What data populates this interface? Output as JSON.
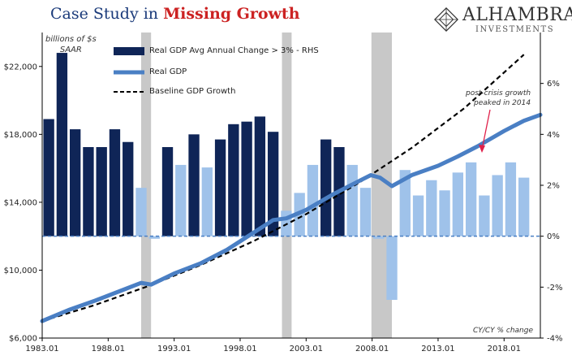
{
  "title": {
    "part1": "Case Study in ",
    "part2": "Missing Growth"
  },
  "logo": {
    "name": "ALHAMBRA",
    "sub": "INVESTMENTS"
  },
  "left_axis_label": [
    "billions of $s",
    "SAAR"
  ],
  "x_note": "CY/CY % change",
  "annotation": [
    "post-crisis growth",
    "peaked in 2014"
  ],
  "legend": [
    {
      "label": "Real GDP Avg Annual Change > 3% - RHS",
      "style": "bar-dark"
    },
    {
      "label": "Real GDP",
      "style": "line-blue"
    },
    {
      "label": "Baseline GDP Growth",
      "style": "dashed-black"
    }
  ],
  "colors": {
    "dark_bar": "#0f2557",
    "light_bar": "#9fc2ea",
    "gdp_line": "#4a7fc4",
    "baseline": "#000000",
    "recession": "#c8c8c8",
    "zero_line": "#4a7fc4"
  },
  "chart_data": {
    "type": "bar+line",
    "x_range": [
      1983.0,
      2020.75
    ],
    "x_tick_labels": [
      "1983.01",
      "1988.01",
      "1993.01",
      "1998.01",
      "2003.01",
      "2008.01",
      "2013.01",
      "2018.01"
    ],
    "x_tick_values": [
      1983.0,
      1988.0,
      1993.0,
      1998.0,
      2003.0,
      2008.0,
      2013.0,
      2018.0
    ],
    "left_axis": {
      "ylim": [
        6000,
        24000
      ],
      "tick_values": [
        6000,
        10000,
        14000,
        18000,
        22000
      ],
      "tick_labels": [
        "$6,000",
        "$10,000",
        "$14,000",
        "$18,000",
        "$22,000"
      ]
    },
    "right_axis": {
      "ylim": [
        -4,
        8
      ],
      "tick_values": [
        -4,
        -2,
        0,
        2,
        4,
        6
      ],
      "tick_labels": [
        "-4%",
        "-2%",
        "0%",
        "2%",
        "4%",
        "6%"
      ]
    },
    "recessions": [
      [
        1990.5,
        1991.25
      ],
      [
        2001.17,
        2001.9
      ],
      [
        2007.95,
        2009.5
      ]
    ],
    "bars": {
      "x": [
        1983,
        1984,
        1985,
        1986,
        1987,
        1988,
        1989,
        1990,
        1991,
        1992,
        1993,
        1994,
        1995,
        1996,
        1997,
        1998,
        1999,
        2000,
        2001,
        2002,
        2003,
        2004,
        2005,
        2006,
        2007,
        2008,
        2009,
        2010,
        2011,
        2012,
        2013,
        2014,
        2015,
        2016,
        2017,
        2018,
        2019
      ],
      "values": [
        4.6,
        7.2,
        4.2,
        3.5,
        3.5,
        4.2,
        3.7,
        1.9,
        -0.1,
        3.5,
        2.8,
        4.0,
        2.7,
        3.8,
        4.4,
        4.5,
        4.7,
        4.1,
        1.0,
        1.7,
        2.8,
        3.8,
        3.5,
        2.8,
        1.9,
        -0.1,
        -2.5,
        2.6,
        1.6,
        2.2,
        1.8,
        2.5,
        2.9,
        1.6,
        2.4,
        2.9,
        2.3
      ],
      "highlight_above": 3
    },
    "series": [
      {
        "name": "Real GDP",
        "x": [
          1983.0,
          1985.0,
          1987.0,
          1989.0,
          1990.5,
          1991.25,
          1993.0,
          1995.0,
          1997.0,
          1999.0,
          2000.5,
          2001.5,
          2003.0,
          2005.0,
          2007.0,
          2007.9,
          2008.6,
          2009.5,
          2011.0,
          2013.0,
          2014.5,
          2016.0,
          2018.0,
          2019.5,
          2020.75
        ],
        "values": [
          7000,
          7650,
          8200,
          8800,
          9250,
          9150,
          9800,
          10400,
          11200,
          12200,
          12950,
          13050,
          13550,
          14450,
          15250,
          15600,
          15450,
          14950,
          15600,
          16150,
          16700,
          17300,
          18200,
          18800,
          19150
        ]
      },
      {
        "name": "Baseline GDP Growth",
        "x": [
          1983.0,
          1987.0,
          1991.0,
          1995.0,
          1999.0,
          2003.0,
          2007.0,
          2011.0,
          2015.0,
          2019.5
        ],
        "values": [
          7000,
          7950,
          9050,
          10300,
          11700,
          13300,
          15150,
          17200,
          19550,
          22700
        ]
      }
    ]
  }
}
